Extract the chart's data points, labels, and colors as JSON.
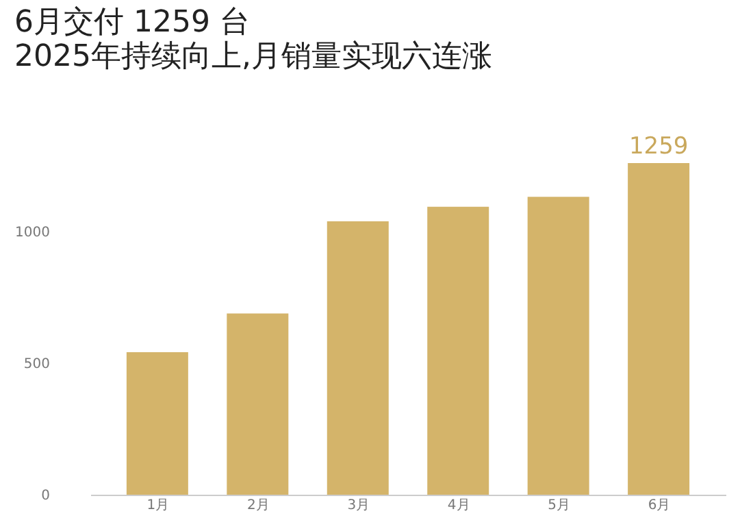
{
  "chart_data": {
    "type": "bar",
    "title": "6月交付 1259 台",
    "subtitle": "2025年持续向上,月销量实现六连涨",
    "categories": [
      "1月",
      "2月",
      "3月",
      "4月",
      "5月",
      "6月"
    ],
    "values": [
      541,
      688,
      1038,
      1093,
      1131,
      1259
    ],
    "value_labels": [
      null,
      null,
      null,
      null,
      null,
      "1259"
    ],
    "color": "#d4b46a",
    "ylim": [
      0,
      1259
    ],
    "yticks": [
      0,
      500,
      1000
    ],
    "grid": false
  }
}
